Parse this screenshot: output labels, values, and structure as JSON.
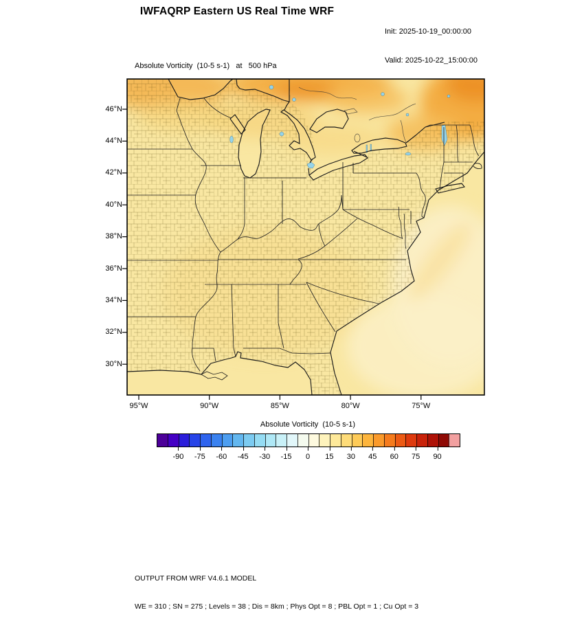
{
  "header": {
    "title": "IWFAQRP Eastern US Real Time WRF",
    "init_line": "Init: 2025-10-19_00:00:00",
    "valid_line": "Valid: 2025-10-22_15:00:00"
  },
  "plot": {
    "subtitle": "Absolute Vorticity  (10-5 s-1)   at   500 hPa"
  },
  "axes": {
    "lat_labels": [
      "46°N",
      "44°N",
      "42°N",
      "40°N",
      "38°N",
      "36°N",
      "34°N",
      "32°N",
      "30°N"
    ],
    "lon_labels": [
      "95°W",
      "90°W",
      "85°W",
      "80°W",
      "75°W"
    ]
  },
  "colorbar": {
    "label": "Absolute Vorticity  (10-5 s-1)",
    "tick_labels": [
      "-90",
      "-75",
      "-60",
      "-45",
      "-30",
      "-15",
      "0",
      "15",
      "30",
      "45",
      "60",
      "75",
      "90"
    ],
    "colors": [
      "#4C0099",
      "#4400C4",
      "#2B1EDB",
      "#2744E8",
      "#2F64EE",
      "#3A82F0",
      "#4D9EF0",
      "#63B7EF",
      "#7CCBF1",
      "#95DCF3",
      "#AFE8F6",
      "#C9F1F8",
      "#E2F7FA",
      "#F5FBEF",
      "#FEFADF",
      "#FEF3BC",
      "#FEE99A",
      "#FEDC79",
      "#FECB58",
      "#FDB53D",
      "#FA9A2B",
      "#F57B1D",
      "#EC5A14",
      "#DE3A0E",
      "#C9220A",
      "#AE1207",
      "#8F0A05",
      "#F2A0A0"
    ]
  },
  "map": {
    "colors": {
      "base": "#F9E7A2",
      "or_strong": "#EC8F26",
      "or_mid": "#F2A93C",
      "or_soft": "#F5BC58",
      "yl_deep": "#F6D57E",
      "ocean": "#FBF0C8",
      "lake": "#96D4EA",
      "line": "#1A1A1A"
    }
  },
  "footer": {
    "line1": "OUTPUT FROM WRF V4.6.1 MODEL",
    "line2": "WE = 310 ; SN = 275 ; Levels = 38 ; Dis = 8km ; Phys Opt = 8 ; PBL Opt = 1 ; Cu Opt = 3"
  },
  "chart_data": {
    "type": "heatmap",
    "title": "IWFAQRP Eastern US Real Time WRF",
    "variable": "Absolute Vorticity (10-5 s-1) at 500 hPa",
    "init_time": "2025-10-19_00:00:00",
    "valid_time": "2025-10-22_15:00:00",
    "x_axis": {
      "tick_labels": [
        "95°W",
        "90°W",
        "85°W",
        "80°W",
        "75°W"
      ],
      "approx_range_deg_west": [
        95.8,
        70.5
      ]
    },
    "y_axis": {
      "tick_labels": [
        "46°N",
        "44°N",
        "42°N",
        "40°N",
        "38°N",
        "36°N",
        "34°N",
        "32°N",
        "30°N"
      ],
      "approx_range_deg_north": [
        28.1,
        47.9
      ]
    },
    "colorbar": {
      "label": "Absolute Vorticity (10-5 s-1)",
      "ticks": [
        -90,
        -75,
        -60,
        -45,
        -30,
        -15,
        0,
        15,
        30,
        45,
        60,
        75,
        90
      ],
      "cell_boundaries_range": [
        -105,
        105
      ],
      "cell_width": 7.5
    },
    "field_readings": [
      "Bulk of the land domain is pale yellow, roughly 5 to 25 units",
      "Orange band of roughly 30 to 45 units stretches along the northern edge across Lake Superior, Lake Huron and southern Canada",
      "Strongest orange maximum near the top-right corner over northern New England and Quebec",
      "Slightly lower values, about 0 to 10 units, over the Atlantic southeast of the coastline with faint diagonal streaks",
      "Scattered small cyan specks of negative vorticity and small lakes across the northern third of the map"
    ],
    "model_footer": "OUTPUT FROM WRF V4.6.1 MODEL — WE = 310 ; SN = 275 ; Levels = 38 ; Dis = 8km ; Phys Opt = 8 ; PBL Opt = 1 ; Cu Opt = 3"
  }
}
